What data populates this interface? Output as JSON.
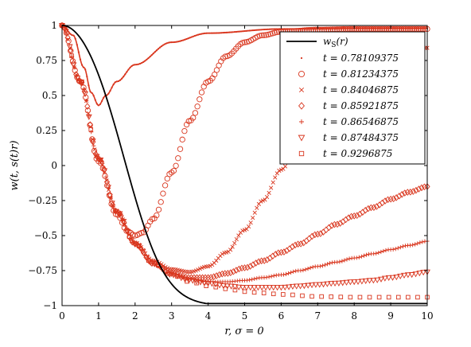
{
  "chart_data": {
    "type": "scatter",
    "xlabel": "r, σ = 0",
    "ylabel": "w(t, s(t)r)",
    "xlim": [
      0,
      10
    ],
    "ylim": [
      -1,
      1
    ],
    "xticks": [
      "0",
      "1",
      "2",
      "3",
      "4",
      "5",
      "6",
      "7",
      "8",
      "9",
      "10"
    ],
    "yticks": [
      "1",
      "0.75",
      "0.5",
      "0.25",
      "0",
      "−0.25",
      "−0.5",
      "−0.75",
      "−1"
    ],
    "grid": false,
    "legend_position": "top-right",
    "colors": {
      "series": "#d9361e",
      "reference": "#000000"
    },
    "reference": {
      "name": "w_S(r)",
      "name_main": "w",
      "name_sub": "S",
      "name_suffix": "(r)"
    },
    "series": [
      {
        "name": "t = 0.78109375",
        "marker": "dot",
        "x": [
          0,
          0.3,
          0.6,
          0.8,
          1.0,
          1.2,
          1.5,
          2.0,
          3.0,
          4.0,
          6.0,
          8.0,
          10.0
        ],
        "y": [
          1.0,
          0.93,
          0.7,
          0.52,
          0.43,
          0.5,
          0.6,
          0.72,
          0.88,
          0.945,
          0.975,
          0.98,
          0.98
        ]
      },
      {
        "name": "t = 0.81234375",
        "marker": "circle",
        "x": [
          0,
          0.5,
          1.0,
          1.5,
          1.8,
          2.0,
          2.2,
          2.5,
          3.0,
          3.5,
          4.0,
          4.5,
          5.0,
          5.5,
          6.0,
          7.0,
          8.0,
          10.0
        ],
        "y": [
          1.0,
          0.6,
          0.03,
          -0.35,
          -0.47,
          -0.5,
          -0.48,
          -0.38,
          -0.05,
          0.32,
          0.6,
          0.78,
          0.88,
          0.93,
          0.955,
          0.97,
          0.975,
          0.975
        ]
      },
      {
        "name": "t = 0.84046875",
        "marker": "x",
        "x": [
          0,
          0.5,
          1.0,
          1.5,
          2.0,
          2.5,
          3.0,
          3.5,
          4.0,
          4.5,
          5.0,
          5.5,
          6.0,
          6.5,
          7.0,
          7.5,
          8.0,
          8.5,
          9.0,
          9.5,
          10.0
        ],
        "y": [
          1.0,
          0.6,
          0.05,
          -0.33,
          -0.55,
          -0.68,
          -0.74,
          -0.76,
          -0.72,
          -0.62,
          -0.46,
          -0.25,
          -0.03,
          0.18,
          0.36,
          0.52,
          0.65,
          0.74,
          0.8,
          0.83,
          0.84
        ]
      },
      {
        "name": "t = 0.85921875",
        "marker": "diamond",
        "x": [
          0,
          0.5,
          1.0,
          1.5,
          2.0,
          2.5,
          3.0,
          3.5,
          4.0,
          4.5,
          5.0,
          5.5,
          6.0,
          6.5,
          7.0,
          7.5,
          8.0,
          8.5,
          9.0,
          9.5,
          10.0
        ],
        "y": [
          1.0,
          0.6,
          0.05,
          -0.33,
          -0.56,
          -0.7,
          -0.77,
          -0.8,
          -0.8,
          -0.77,
          -0.73,
          -0.68,
          -0.62,
          -0.56,
          -0.49,
          -0.42,
          -0.36,
          -0.3,
          -0.24,
          -0.19,
          -0.15
        ]
      },
      {
        "name": "t = 0.86546875",
        "marker": "plus",
        "x": [
          0,
          0.5,
          1.0,
          1.5,
          2.0,
          2.5,
          3.0,
          3.5,
          4.0,
          4.5,
          5.0,
          5.5,
          6.0,
          6.5,
          7.0,
          7.5,
          8.0,
          8.5,
          9.0,
          9.5,
          10.0
        ],
        "y": [
          1.0,
          0.6,
          0.05,
          -0.33,
          -0.56,
          -0.7,
          -0.77,
          -0.81,
          -0.83,
          -0.83,
          -0.82,
          -0.8,
          -0.78,
          -0.75,
          -0.72,
          -0.69,
          -0.66,
          -0.63,
          -0.6,
          -0.57,
          -0.54
        ]
      },
      {
        "name": "t = 0.87484375",
        "marker": "triangle",
        "x": [
          0,
          0.5,
          1.0,
          1.5,
          2.0,
          2.5,
          3.0,
          3.5,
          4.0,
          4.5,
          5.0,
          5.5,
          6.0,
          6.5,
          7.0,
          7.5,
          8.0,
          8.5,
          9.0,
          9.5,
          10.0
        ],
        "y": [
          1.0,
          0.6,
          0.05,
          -0.33,
          -0.56,
          -0.7,
          -0.78,
          -0.82,
          -0.84,
          -0.86,
          -0.87,
          -0.87,
          -0.87,
          -0.86,
          -0.85,
          -0.84,
          -0.83,
          -0.82,
          -0.8,
          -0.78,
          -0.76
        ]
      },
      {
        "name": "t = 0.9296875",
        "marker": "square",
        "x": [
          0,
          0.5,
          1.0,
          1.5,
          2.0,
          2.5,
          3.0,
          3.5,
          4.0,
          4.5,
          5.0,
          5.5,
          6.0,
          7.0,
          8.0,
          9.0,
          10.0
        ],
        "y": [
          1.0,
          0.6,
          0.05,
          -0.33,
          -0.56,
          -0.7,
          -0.78,
          -0.83,
          -0.86,
          -0.88,
          -0.9,
          -0.91,
          -0.92,
          -0.935,
          -0.94,
          -0.94,
          -0.94
        ]
      }
    ]
  }
}
